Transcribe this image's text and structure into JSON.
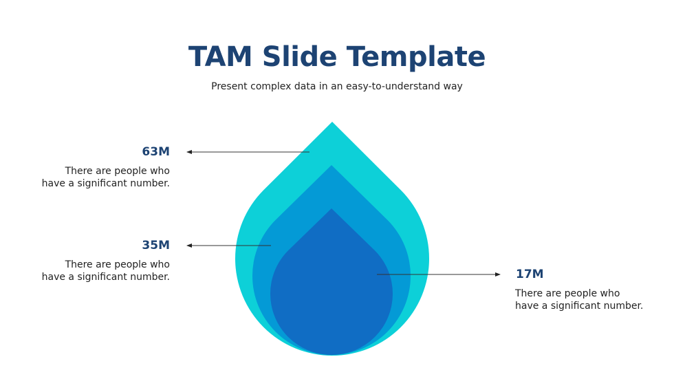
{
  "title": "TAM Slide Template",
  "subtitle": "Present complex data in an easy-to-understand way",
  "layers": [
    {
      "value": "63M",
      "line1": "There are people who",
      "line2": "have a significant number.",
      "color": "#0dd0d8"
    },
    {
      "value": "35M",
      "line1": "There are people who",
      "line2": "have a significant number.",
      "color": "#049ad6"
    },
    {
      "value": "17M",
      "line1": "There are people who",
      "line2": "have a significant number.",
      "color": "#106dc4"
    }
  ],
  "colors": {
    "title": "#1d4373",
    "arrow": "#222222"
  }
}
